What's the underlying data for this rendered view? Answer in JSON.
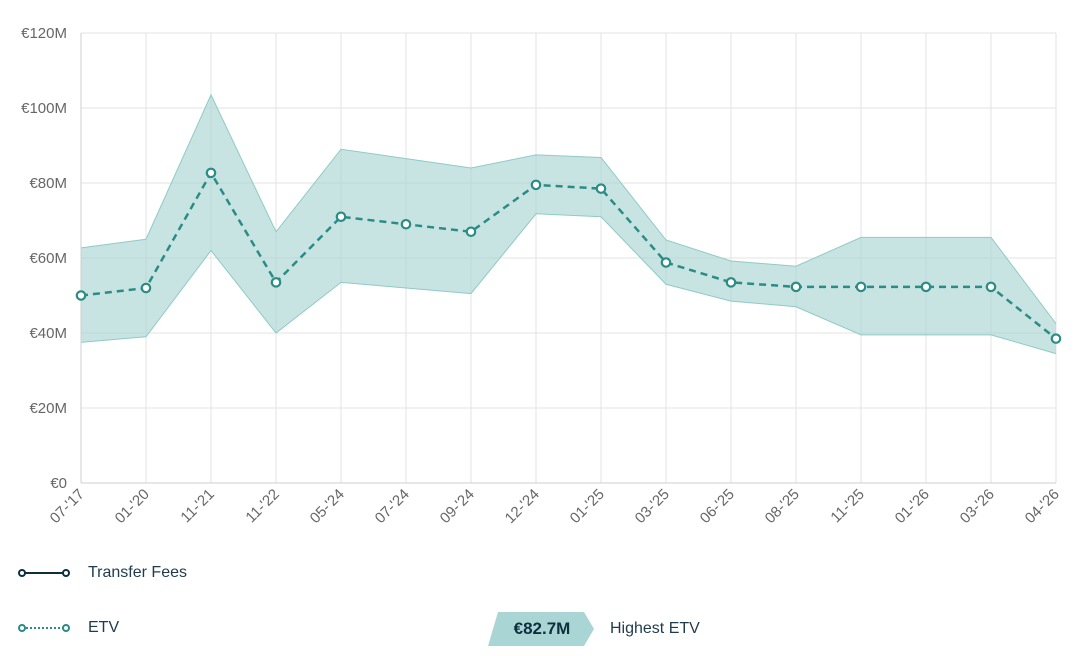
{
  "chart_data": {
    "type": "line",
    "x": [
      "07-'17",
      "01-'20",
      "11-'21",
      "11-'22",
      "05-'24",
      "07-'24",
      "09-'24",
      "12-'24",
      "01-'25",
      "03-'25",
      "06-'25",
      "08-'25",
      "11-'25",
      "01-'26",
      "03-'26",
      "04-'26"
    ],
    "series": [
      {
        "name": "ETV",
        "values": [
          50.0,
          52.0,
          82.7,
          53.5,
          71.0,
          69.0,
          67.0,
          79.5,
          78.5,
          58.8,
          53.5,
          52.3,
          52.3,
          52.3,
          52.3,
          38.5
        ],
        "upper": [
          62.7,
          65.0,
          103.5,
          67.0,
          89.0,
          86.5,
          84.0,
          87.5,
          86.8,
          64.8,
          59.2,
          57.8,
          65.5,
          65.5,
          65.5,
          42.5
        ],
        "lower": [
          37.5,
          39.0,
          62.0,
          40.0,
          53.5,
          52.0,
          50.5,
          71.8,
          71.0,
          53.0,
          48.5,
          47.0,
          39.5,
          39.5,
          39.5,
          34.5
        ],
        "color": "#2a8c85",
        "band_color": "#a9d6d4"
      }
    ],
    "ylim": [
      0,
      120
    ],
    "yticks": [
      "€0",
      "€20M",
      "€40M",
      "€60M",
      "€80M",
      "€100M",
      "€120M"
    ],
    "ytick_values": [
      0,
      20,
      40,
      60,
      80,
      100,
      120
    ],
    "grid": true,
    "title": "",
    "xlabel": "",
    "ylabel": ""
  },
  "legend": {
    "transfer_fees_label": "Transfer Fees",
    "etv_label": "ETV",
    "transfer_color": "#0f2f3f",
    "etv_color": "#2a8c85"
  },
  "highest": {
    "value": "€82.7M",
    "label": "Highest ETV",
    "badge_color": "#a9d6d4"
  }
}
